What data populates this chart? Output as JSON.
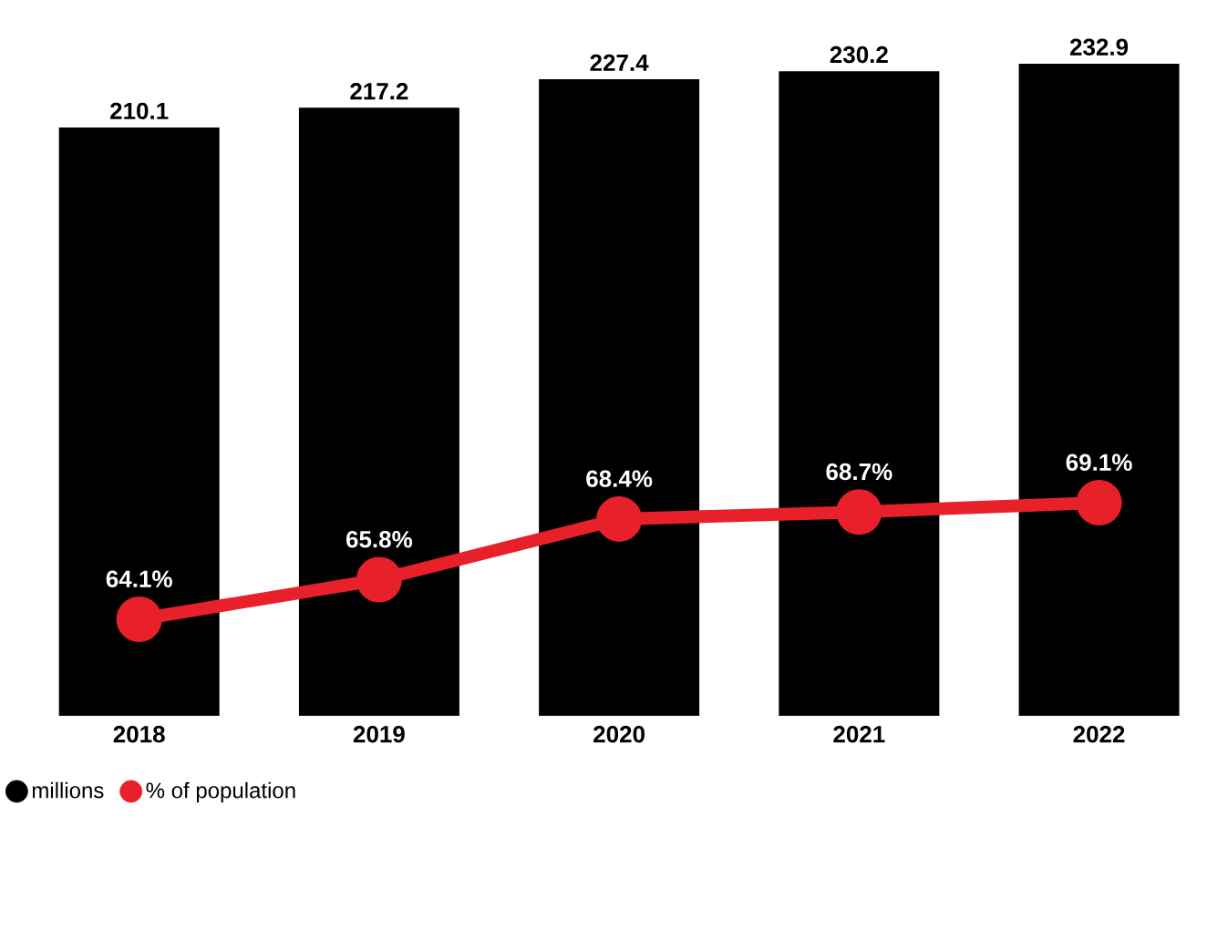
{
  "chart_data": {
    "type": "bar",
    "categories": [
      "2018",
      "2019",
      "2020",
      "2021",
      "2022"
    ],
    "series": [
      {
        "name": "millions",
        "color": "#000000",
        "values": [
          210.1,
          217.2,
          227.4,
          230.2,
          232.9
        ],
        "value_labels": [
          "210.1",
          "217.2",
          "227.4",
          "230.2",
          "232.9"
        ]
      },
      {
        "name": "% of population",
        "type": "line",
        "axis": "y2",
        "color": "#e8202a",
        "marker": "circle",
        "line_style": "solid",
        "values": [
          64.1,
          65.8,
          68.4,
          68.7,
          69.1
        ],
        "value_labels": [
          "64.1%",
          "65.8%",
          "68.4%",
          "68.7%",
          "69.1%"
        ]
      }
    ],
    "ylim": [
      0,
      232.9
    ],
    "tick_labels": "x",
    "legend": "bottom left"
  }
}
